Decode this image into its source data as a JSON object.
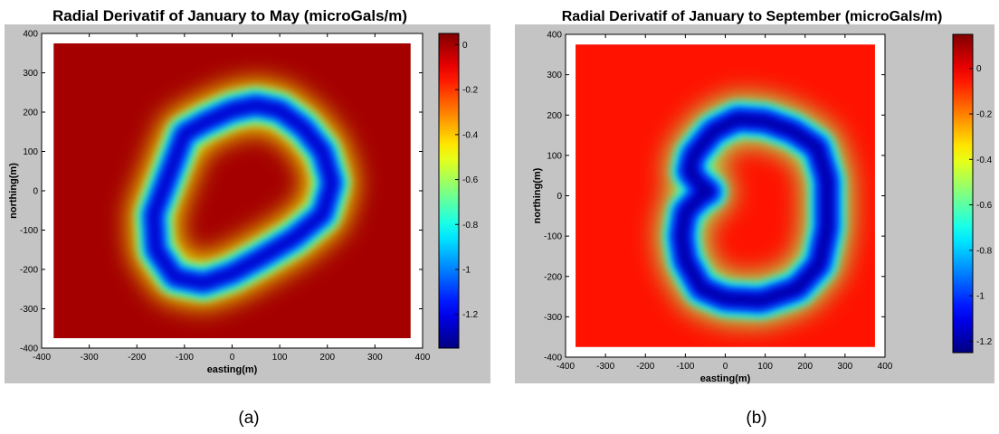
{
  "chart_data": [
    {
      "type": "heatmap",
      "title": "Radial Derivatif of January to May (microGals/m)",
      "xlabel": "easting(m)",
      "ylabel": "northing(m)",
      "xlim": [
        -400,
        400
      ],
      "ylim": [
        -400,
        400
      ],
      "x_ticks": [
        -400,
        -300,
        -200,
        -100,
        0,
        100,
        200,
        300,
        400
      ],
      "y_ticks": [
        -400,
        -300,
        -200,
        -100,
        0,
        100,
        200,
        300,
        400
      ],
      "colorbar": {
        "min": -1.35,
        "max": 0.05,
        "ticks": [
          0,
          -0.2,
          -0.4,
          -0.6,
          -0.8,
          -1,
          -1.2
        ]
      },
      "data_extent": [
        -375,
        375
      ],
      "background_value": 0,
      "anomaly_ring": {
        "value": -1.3,
        "path": [
          [
            -100,
            145
          ],
          [
            -55,
            175
          ],
          [
            0,
            205
          ],
          [
            50,
            218
          ],
          [
            100,
            205
          ],
          [
            150,
            160
          ],
          [
            190,
            100
          ],
          [
            210,
            20
          ],
          [
            190,
            -60
          ],
          [
            130,
            -120
          ],
          [
            60,
            -170
          ],
          [
            0,
            -210
          ],
          [
            -60,
            -235
          ],
          [
            -120,
            -220
          ],
          [
            -160,
            -150
          ],
          [
            -165,
            -60
          ],
          [
            -130,
            50
          ]
        ]
      },
      "caption": "(a)"
    },
    {
      "type": "heatmap",
      "title": "Radial Derivatif of January to September (microGals/m)",
      "xlabel": "easting(m)",
      "ylabel": "northing(m)",
      "xlim": [
        -400,
        400
      ],
      "ylim": [
        -400,
        400
      ],
      "x_ticks": [
        -400,
        -300,
        -200,
        -100,
        0,
        100,
        200,
        300,
        400
      ],
      "y_ticks": [
        -400,
        -300,
        -200,
        -100,
        0,
        100,
        200,
        300,
        400
      ],
      "colorbar": {
        "min": -1.25,
        "max": 0.15,
        "ticks": [
          0,
          -0.2,
          -0.4,
          -0.6,
          -0.8,
          -1,
          -1.2
        ]
      },
      "data_extent": [
        -375,
        375
      ],
      "background_value": -0.05,
      "anomaly_ring": {
        "value": -1.25,
        "path": [
          [
            -80,
            100
          ],
          [
            -30,
            160
          ],
          [
            30,
            190
          ],
          [
            100,
            185
          ],
          [
            170,
            160
          ],
          [
            230,
            120
          ],
          [
            255,
            40
          ],
          [
            255,
            -80
          ],
          [
            235,
            -170
          ],
          [
            180,
            -230
          ],
          [
            90,
            -260
          ],
          [
            0,
            -255
          ],
          [
            -60,
            -230
          ],
          [
            -100,
            -160
          ],
          [
            -110,
            -100
          ],
          [
            -100,
            -40
          ],
          [
            -60,
            0
          ],
          [
            -40,
            10
          ],
          [
            -65,
            30
          ],
          [
            -90,
            60
          ]
        ]
      },
      "caption": "(b)"
    }
  ]
}
